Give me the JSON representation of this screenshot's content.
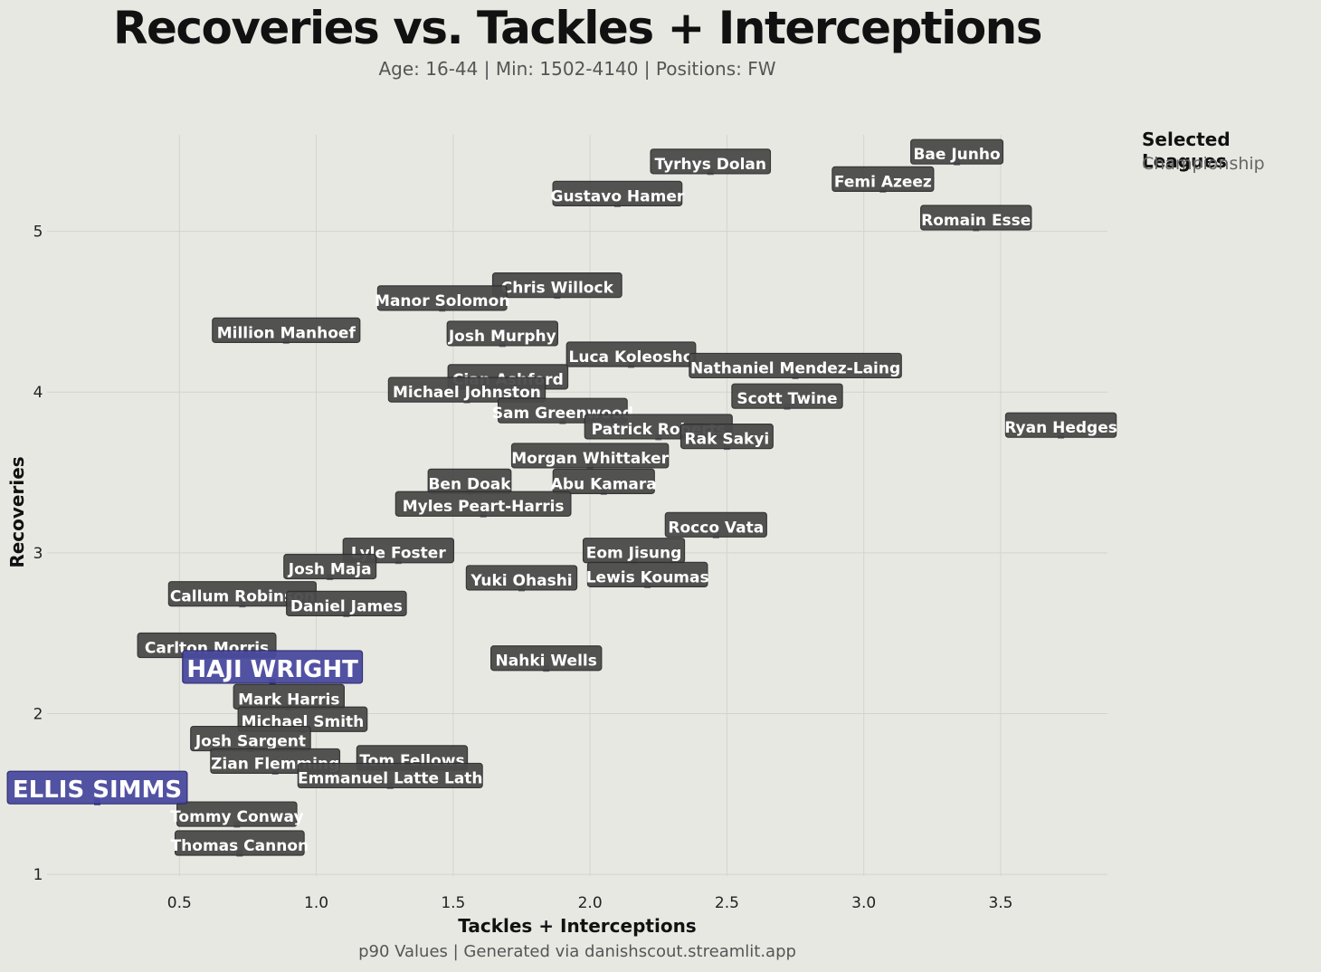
{
  "header": {
    "title": "Recoveries vs. Tackles + Interceptions",
    "subtitle": "Age: 16-44 | Min: 1502-4140 | Positions: FW"
  },
  "legend": {
    "title": "Selected Leagues",
    "items": [
      "Championship"
    ]
  },
  "footer": "p90 Values | Generated via danishscout.streamlit.app",
  "colors": {
    "background": "#e8e8e3",
    "label_box": "#4a4a4a",
    "highlight_box": "#4a4aa0",
    "grid": "#d4d4ce"
  },
  "chart_data": {
    "type": "scatter",
    "xlabel": "Tackles + Interceptions",
    "ylabel": "Recoveries",
    "xlim": [
      0.0,
      3.9
    ],
    "ylim": [
      0.95,
      5.6
    ],
    "xticks": [
      0.5,
      1.0,
      1.5,
      2.0,
      2.5,
      3.0,
      3.5
    ],
    "yticks": [
      1,
      2,
      3,
      4,
      5
    ],
    "grid": true,
    "legend_position": "top-right outside",
    "highlighted": [
      "HAJI WRIGHT",
      "ELLIS SIMMS"
    ],
    "points": [
      {
        "name": "Bae Junho",
        "x": 3.34,
        "y": 5.43
      },
      {
        "name": "Tyrhys Dolan",
        "x": 2.44,
        "y": 5.37
      },
      {
        "name": "Femi Azeez",
        "x": 3.07,
        "y": 5.26
      },
      {
        "name": "Gustavo Hamer",
        "x": 2.1,
        "y": 5.17
      },
      {
        "name": "Romain Esse",
        "x": 3.41,
        "y": 5.02
      },
      {
        "name": "Chris Willock",
        "x": 1.88,
        "y": 4.6
      },
      {
        "name": "Manor Solomon",
        "x": 1.46,
        "y": 4.52
      },
      {
        "name": "Million Manhoef",
        "x": 0.89,
        "y": 4.32
      },
      {
        "name": "Josh Murphy",
        "x": 1.68,
        "y": 4.3
      },
      {
        "name": "Luca Koleosho",
        "x": 2.15,
        "y": 4.17
      },
      {
        "name": "Nathaniel Mendez-Laing",
        "x": 2.75,
        "y": 4.1
      },
      {
        "name": "Cian Ashford",
        "x": 1.7,
        "y": 4.03
      },
      {
        "name": "Michael Johnston",
        "x": 1.55,
        "y": 3.95
      },
      {
        "name": "Scott Twine",
        "x": 2.72,
        "y": 3.91
      },
      {
        "name": "Sam Greenwood",
        "x": 1.9,
        "y": 3.82
      },
      {
        "name": "Ryan Hedges",
        "x": 3.72,
        "y": 3.73
      },
      {
        "name": "Patrick Roberts",
        "x": 2.25,
        "y": 3.72
      },
      {
        "name": "Rak Sakyi",
        "x": 2.5,
        "y": 3.66
      },
      {
        "name": "Morgan Whittaker",
        "x": 2.0,
        "y": 3.54
      },
      {
        "name": "Ben Doak",
        "x": 1.56,
        "y": 3.38
      },
      {
        "name": "Abu Kamara",
        "x": 2.05,
        "y": 3.38
      },
      {
        "name": "Myles Peart-Harris",
        "x": 1.61,
        "y": 3.24
      },
      {
        "name": "Rocco Vata",
        "x": 2.46,
        "y": 3.11
      },
      {
        "name": "Lyle Foster",
        "x": 1.3,
        "y": 2.95
      },
      {
        "name": "Eom Jisung",
        "x": 2.16,
        "y": 2.95
      },
      {
        "name": "Josh Maja",
        "x": 1.05,
        "y": 2.85
      },
      {
        "name": "Lewis Koumas",
        "x": 2.21,
        "y": 2.8
      },
      {
        "name": "Yuki Ohashi",
        "x": 1.75,
        "y": 2.78
      },
      {
        "name": "Callum Robinson",
        "x": 0.73,
        "y": 2.68
      },
      {
        "name": "Daniel James",
        "x": 1.11,
        "y": 2.62
      },
      {
        "name": "Carlton Morris",
        "x": 0.6,
        "y": 2.36
      },
      {
        "name": "Nahki Wells",
        "x": 1.84,
        "y": 2.28
      },
      {
        "name": "HAJI WRIGHT",
        "x": 0.84,
        "y": 2.2
      },
      {
        "name": "Mark Harris",
        "x": 0.9,
        "y": 2.04
      },
      {
        "name": "Michael Smith",
        "x": 0.95,
        "y": 1.9
      },
      {
        "name": "Josh Sargent",
        "x": 0.76,
        "y": 1.78
      },
      {
        "name": "Tom Fellows",
        "x": 1.35,
        "y": 1.66
      },
      {
        "name": "Zian Flemming",
        "x": 0.85,
        "y": 1.64
      },
      {
        "name": "Emmanuel Latte Lath",
        "x": 1.27,
        "y": 1.55
      },
      {
        "name": "ELLIS SIMMS",
        "x": 0.2,
        "y": 1.45
      },
      {
        "name": "Tommy Conway",
        "x": 0.71,
        "y": 1.31
      },
      {
        "name": "Thomas Cannon",
        "x": 0.72,
        "y": 1.13
      }
    ]
  }
}
